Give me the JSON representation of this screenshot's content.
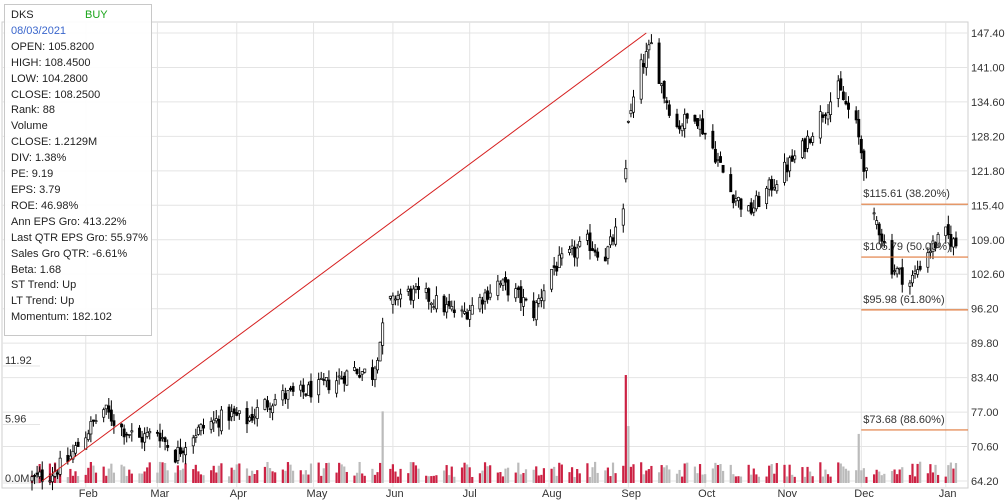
{
  "info": {
    "ticker": "DKS",
    "signal": "BUY",
    "date": "08/03/2021",
    "lines": [
      "OPEN: 105.8200",
      "HIGH: 108.4500",
      "LOW: 104.2800",
      "CLOSE: 108.2500",
      "Rank: 88",
      "Volume",
      "CLOSE: 1.2129M",
      "DIV: 1.38%",
      "PE: 9.19",
      "EPS: 3.79",
      "ROE: 46.98%",
      "Ann EPS Gro: 413.22%",
      "Last QTR EPS Gro: 55.97%",
      "Sales Gro QTR: -6.61%",
      "Beta: 1.68",
      "ST Trend: Up",
      "LT Trend: Up",
      "Momentum: 182.102"
    ]
  },
  "colors": {
    "candle": "#000000",
    "trendline": "#d62020",
    "fib": "#e07a3c",
    "volume_up": "#cc2244",
    "volume_down": "#bbbbbb",
    "grid": "#e4e4e4"
  },
  "chart_data": {
    "type": "candlestick",
    "x_range": [
      "2021-01-11",
      "2022-01-07"
    ],
    "y_range": [
      64.2,
      147.4
    ],
    "price_ticks": [
      "147.40",
      "141.00",
      "134.60",
      "128.20",
      "121.80",
      "115.40",
      "109.00",
      "102.60",
      "96.20",
      "89.80",
      "83.40",
      "77.00",
      "70.60",
      "64.20"
    ],
    "month_labels": [
      {
        "label": "Feb",
        "date": "2021-02-01"
      },
      {
        "label": "Mar",
        "date": "2021-03-01"
      },
      {
        "label": "Apr",
        "date": "2021-04-01"
      },
      {
        "label": "May",
        "date": "2021-05-01"
      },
      {
        "label": "Jun",
        "date": "2021-06-01"
      },
      {
        "label": "Jul",
        "date": "2021-07-01"
      },
      {
        "label": "Aug",
        "date": "2021-08-01"
      },
      {
        "label": "Sep",
        "date": "2021-09-01"
      },
      {
        "label": "Oct",
        "date": "2021-10-01"
      },
      {
        "label": "Nov",
        "date": "2021-11-01"
      },
      {
        "label": "Dec",
        "date": "2021-12-01"
      },
      {
        "label": "Jan",
        "date": "2022-01-03"
      }
    ],
    "volume_scale_labels": [
      {
        "label": "11.92",
        "value": 11.92
      },
      {
        "label": "5.96",
        "value": 5.96
      },
      {
        "label": "0.0M",
        "value": 0
      }
    ],
    "volume_max_millions": 11.92,
    "price_path": [
      {
        "date": "2021-01-11",
        "close": 64.5
      },
      {
        "date": "2021-01-18",
        "close": 65.5
      },
      {
        "date": "2021-01-25",
        "close": 68.0
      },
      {
        "date": "2021-02-01",
        "close": 73.0
      },
      {
        "date": "2021-02-08",
        "close": 77.5
      },
      {
        "date": "2021-02-15",
        "close": 74.0
      },
      {
        "date": "2021-02-22",
        "close": 72.0
      },
      {
        "date": "2021-03-01",
        "close": 73.5
      },
      {
        "date": "2021-03-08",
        "close": 69.0
      },
      {
        "date": "2021-03-15",
        "close": 73.0
      },
      {
        "date": "2021-03-22",
        "close": 75.0
      },
      {
        "date": "2021-03-29",
        "close": 76.5
      },
      {
        "date": "2021-04-05",
        "close": 75.5
      },
      {
        "date": "2021-04-12",
        "close": 78.5
      },
      {
        "date": "2021-04-19",
        "close": 80.0
      },
      {
        "date": "2021-04-26",
        "close": 80.5
      },
      {
        "date": "2021-05-03",
        "close": 81.5
      },
      {
        "date": "2021-05-10",
        "close": 83.0
      },
      {
        "date": "2021-05-17",
        "close": 85.0
      },
      {
        "date": "2021-05-24",
        "close": 84.0
      },
      {
        "date": "2021-05-31",
        "close": 98.5
      },
      {
        "date": "2021-06-07",
        "close": 99.0
      },
      {
        "date": "2021-06-14",
        "close": 98.5
      },
      {
        "date": "2021-06-21",
        "close": 96.5
      },
      {
        "date": "2021-06-28",
        "close": 95.0
      },
      {
        "date": "2021-07-05",
        "close": 98.0
      },
      {
        "date": "2021-07-12",
        "close": 101.0
      },
      {
        "date": "2021-07-19",
        "close": 99.0
      },
      {
        "date": "2021-07-26",
        "close": 95.5
      },
      {
        "date": "2021-08-02",
        "close": 103.5
      },
      {
        "date": "2021-08-09",
        "close": 106.0
      },
      {
        "date": "2021-08-16",
        "close": 108.5
      },
      {
        "date": "2021-08-23",
        "close": 106.0
      },
      {
        "date": "2021-08-30",
        "close": 113.5
      },
      {
        "date": "2021-09-01",
        "close": 131.0
      },
      {
        "date": "2021-09-06",
        "close": 141.0
      },
      {
        "date": "2021-09-10",
        "close": 145.0
      },
      {
        "date": "2021-09-15",
        "close": 136.0
      },
      {
        "date": "2021-09-20",
        "close": 130.0
      },
      {
        "date": "2021-09-27",
        "close": 132.5
      },
      {
        "date": "2021-10-04",
        "close": 126.0
      },
      {
        "date": "2021-10-11",
        "close": 118.0
      },
      {
        "date": "2021-10-18",
        "close": 114.0
      },
      {
        "date": "2021-10-25",
        "close": 118.0
      },
      {
        "date": "2021-11-01",
        "close": 122.0
      },
      {
        "date": "2021-11-08",
        "close": 126.0
      },
      {
        "date": "2021-11-15",
        "close": 132.0
      },
      {
        "date": "2021-11-22",
        "close": 137.0
      },
      {
        "date": "2021-11-29",
        "close": 130.0
      },
      {
        "date": "2021-12-06",
        "close": 114.0
      },
      {
        "date": "2021-12-13",
        "close": 104.0
      },
      {
        "date": "2021-12-20",
        "close": 101.0
      },
      {
        "date": "2021-12-27",
        "close": 107.0
      },
      {
        "date": "2022-01-03",
        "close": 110.0
      },
      {
        "date": "2022-01-07",
        "close": 108.0
      }
    ],
    "gap_dates": [
      "2021-05-31",
      "2021-09-01",
      "2021-12-06"
    ],
    "trendline": {
      "start": {
        "date": "2021-01-15",
        "price": 64.2
      },
      "end": {
        "date": "2021-09-08",
        "price": 147.4
      }
    },
    "fib_levels": [
      {
        "label": "$115.61 (38.20%)",
        "value": 115.61
      },
      {
        "label": "$105.79 (50.00%)",
        "value": 105.79
      },
      {
        "label": "$95.98 (61.80%)",
        "value": 95.98
      },
      {
        "label": "$73.68 (88.60%)",
        "value": 73.68
      }
    ],
    "fib_start_date": "2021-12-01",
    "volume_spikes": [
      {
        "date": "2021-05-28",
        "value": 7.3,
        "up": false
      },
      {
        "date": "2021-08-31",
        "value": 11.0,
        "up": true
      },
      {
        "date": "2021-09-01",
        "value": 5.8,
        "up": false
      },
      {
        "date": "2021-11-30",
        "value": 5.0,
        "up": false
      }
    ]
  }
}
